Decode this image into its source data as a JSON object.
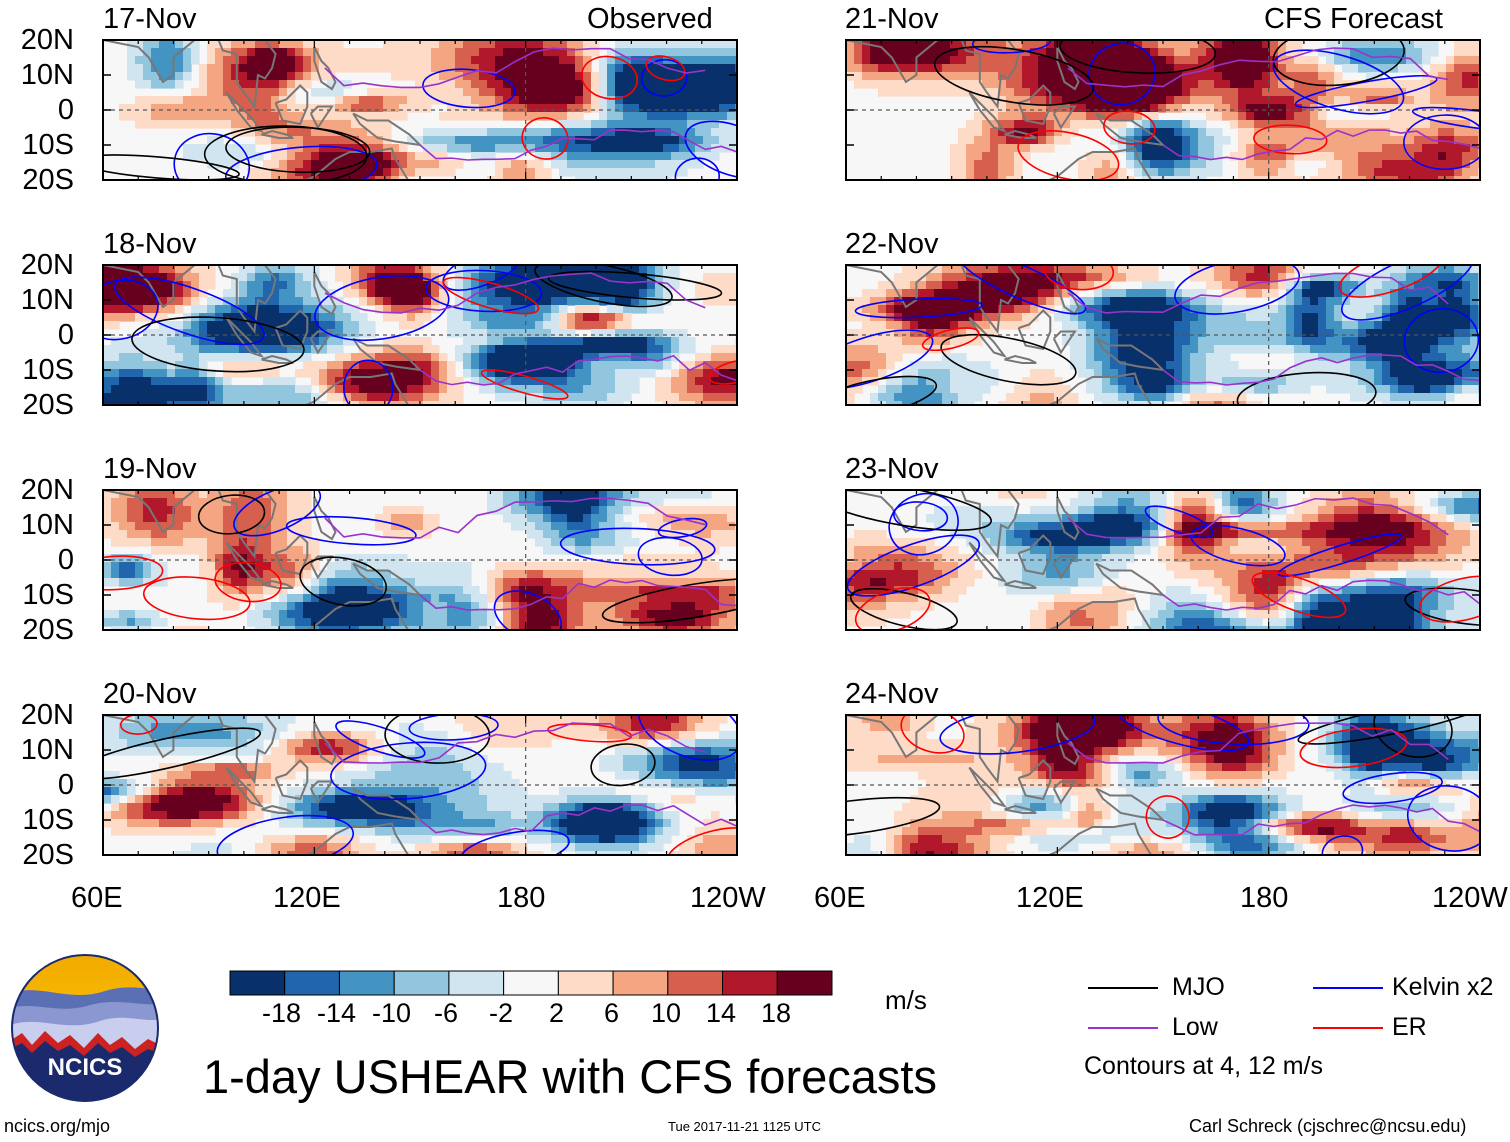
{
  "chart_data": {
    "type": "heatmap",
    "title": "1-day USHEAR with CFS forecasts",
    "column_titles": {
      "observed": "Observed",
      "forecast": "CFS Forecast"
    },
    "panels": [
      {
        "date": "17-Nov",
        "column": "observed",
        "row": 0
      },
      {
        "date": "18-Nov",
        "column": "observed",
        "row": 1
      },
      {
        "date": "19-Nov",
        "column": "observed",
        "row": 2
      },
      {
        "date": "20-Nov",
        "column": "observed",
        "row": 3
      },
      {
        "date": "21-Nov",
        "column": "forecast",
        "row": 0
      },
      {
        "date": "22-Nov",
        "column": "forecast",
        "row": 1
      },
      {
        "date": "23-Nov",
        "column": "forecast",
        "row": 2
      },
      {
        "date": "24-Nov",
        "column": "forecast",
        "row": 3
      }
    ],
    "lat_ticks": [
      "20N",
      "10N",
      "0",
      "10S",
      "20S"
    ],
    "lat_values": [
      20,
      10,
      0,
      -10,
      -20
    ],
    "lon_ticks": [
      "60E",
      "120E",
      "180",
      "120W"
    ],
    "lon_values": [
      60,
      120,
      180,
      240
    ],
    "lon_range": [
      60,
      240
    ],
    "lat_range": [
      -20,
      20
    ],
    "colorbar": {
      "units": "m/s",
      "ticks": [
        "-18",
        "-14",
        "-10",
        "-6",
        "-2",
        "2",
        "6",
        "10",
        "14",
        "18"
      ],
      "colors": [
        "#08306b",
        "#2166ac",
        "#4393c3",
        "#92c5de",
        "#d1e5f0",
        "#f7f7f7",
        "#fddbc7",
        "#f4a582",
        "#d6604d",
        "#b2182b",
        "#67001f"
      ]
    },
    "legend": {
      "items": [
        {
          "label": "MJO",
          "color": "#000000"
        },
        {
          "label": "Kelvin x2",
          "color": "#0000ff"
        },
        {
          "label": "Low",
          "color": "#9933cc"
        },
        {
          "label": "ER",
          "color": "#ff0000"
        }
      ],
      "note": "Contours at 4, 12 m/s"
    }
  },
  "logo": {
    "text": "NCICS"
  },
  "footer": {
    "left": "ncics.org/mjo",
    "center": "Tue 2017-11-21 1125 UTC",
    "right": "Carl Schreck (cjschrec@ncsu.edu)"
  }
}
